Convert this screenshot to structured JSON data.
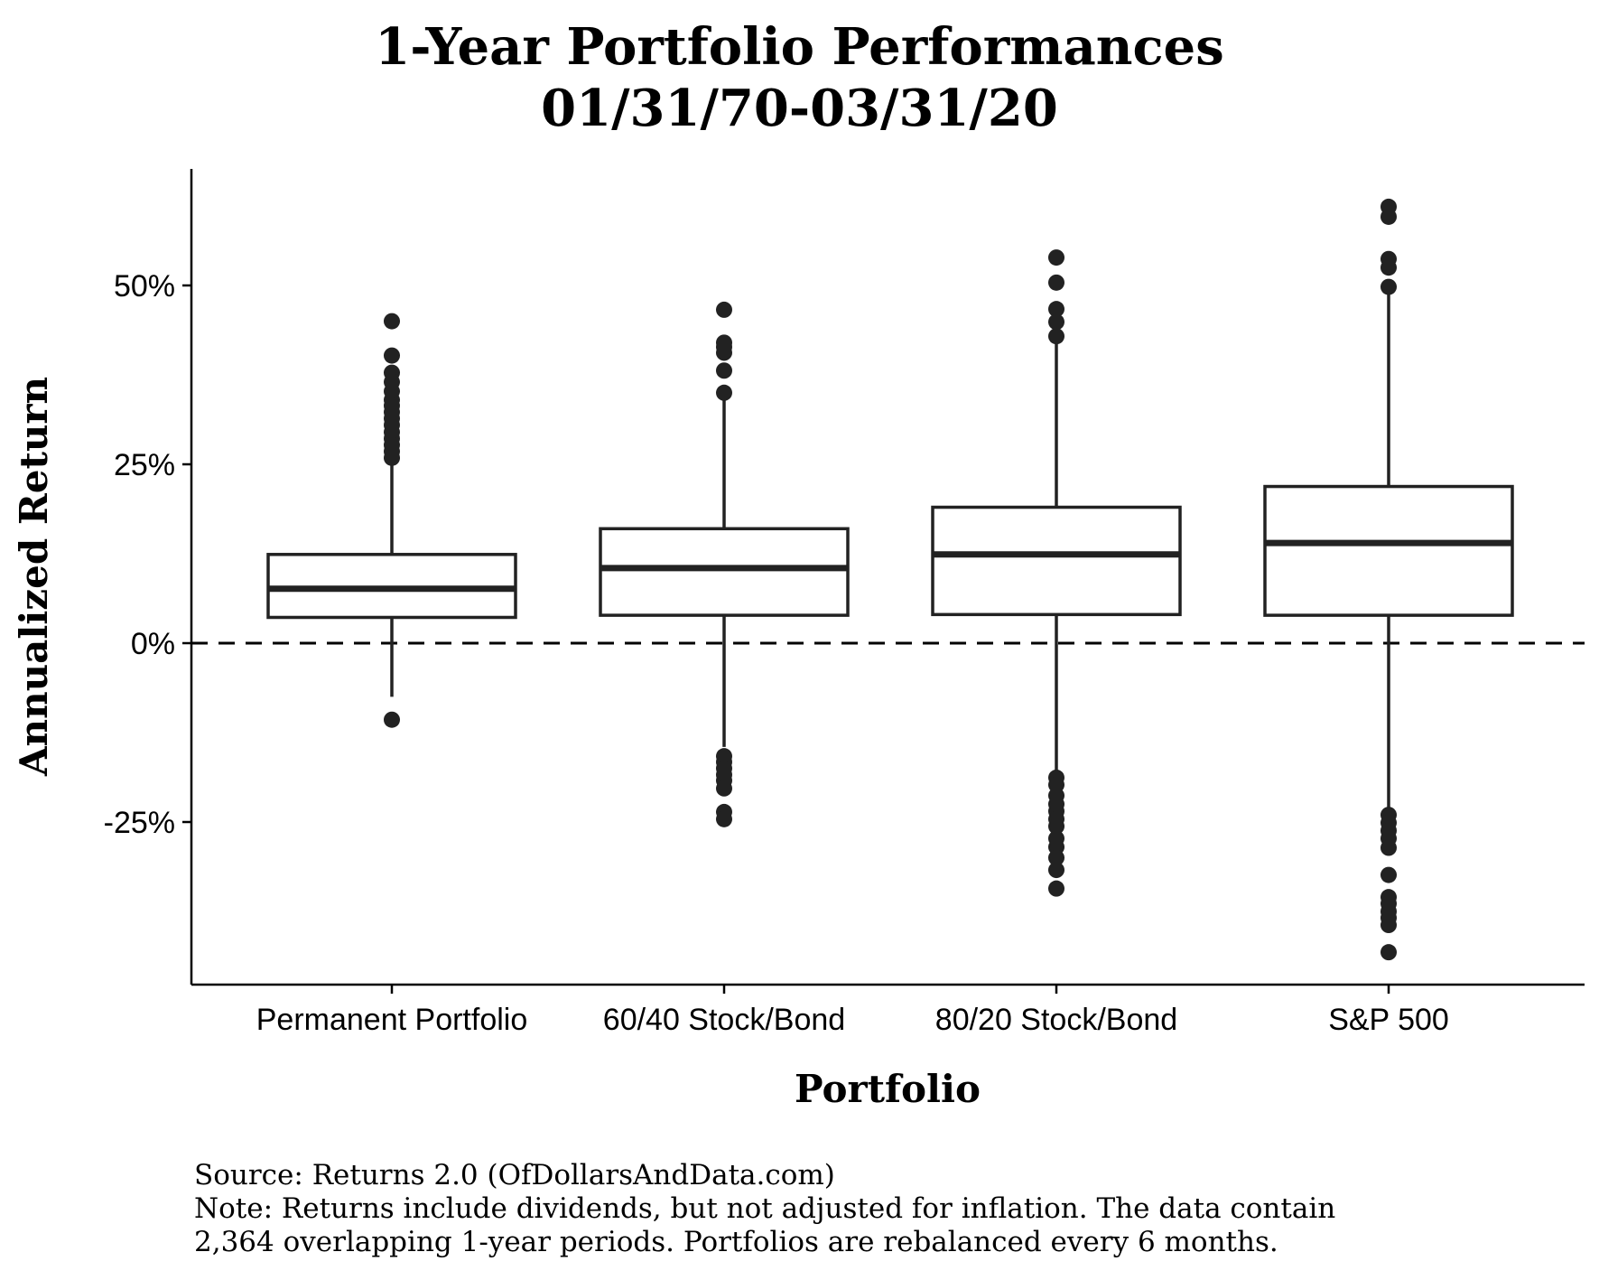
{
  "chart_data": {
    "type": "boxplot",
    "title": [
      "1-Year Portfolio Performances",
      "01/31/70-03/31/20"
    ],
    "xlabel": "Portfolio",
    "ylabel": "Annualized Return",
    "categories": [
      "Permanent Portfolio",
      "60/40 Stock/Bond",
      "80/20 Stock/Bond",
      "S&P 500"
    ],
    "y_ticks": [
      -25,
      0,
      25,
      50
    ],
    "y_tick_labels": [
      "-25%",
      "0%",
      "25%",
      "50%"
    ],
    "ylim": [
      -48,
      66
    ],
    "reference_line": {
      "y": 0,
      "style": "dashed"
    },
    "grid": false,
    "boxes": [
      {
        "category": "Permanent Portfolio",
        "whisker_low": -7.5,
        "q1": 3.6,
        "median": 7.6,
        "q3": 12.4,
        "whisker_high": 25.4,
        "outliers": [
          45.0,
          40.2,
          37.8,
          36.5,
          35.2,
          34.0,
          33.2,
          32.3,
          31.4,
          30.5,
          29.5,
          28.6,
          27.7,
          26.8,
          25.9,
          -10.7
        ]
      },
      {
        "category": "60/40 Stock/Bond",
        "whisker_low": -14.5,
        "q1": 3.9,
        "median": 10.5,
        "q3": 16.0,
        "whisker_high": 34.0,
        "outliers": [
          46.6,
          42.0,
          41.4,
          40.6,
          38.1,
          35.0,
          -15.8,
          -16.6,
          -17.5,
          -18.4,
          -19.2,
          -20.3,
          -23.6,
          -24.6
        ]
      },
      {
        "category": "80/20 Stock/Bond",
        "whisker_low": -17.9,
        "q1": 4.0,
        "median": 12.4,
        "q3": 19.0,
        "whisker_high": 42.3,
        "outliers": [
          53.9,
          50.4,
          46.7,
          44.9,
          42.9,
          -18.8,
          -19.8,
          -21.3,
          -22.5,
          -23.5,
          -24.6,
          -25.6,
          -27.3,
          -28.5,
          -30.0,
          -31.7,
          -34.3
        ]
      },
      {
        "category": "S&P 500",
        "whisker_low": -23.2,
        "q1": 3.9,
        "median": 14.0,
        "q3": 21.9,
        "whisker_high": 49.0,
        "outliers": [
          61.0,
          59.6,
          53.7,
          52.5,
          49.8,
          -24.0,
          -25.1,
          -26.2,
          -27.3,
          -28.6,
          -32.4,
          -35.5,
          -36.4,
          -37.5,
          -38.4,
          -39.4,
          -43.2
        ]
      }
    ]
  },
  "caption": {
    "lines": [
      "Source: Returns 2.0 (OfDollarsAndData.com)",
      "Note: Returns include dividends, but not adjusted for inflation. The data contain",
      "2,364 overlapping 1-year periods. Portfolios are rebalanced every 6 months."
    ]
  }
}
